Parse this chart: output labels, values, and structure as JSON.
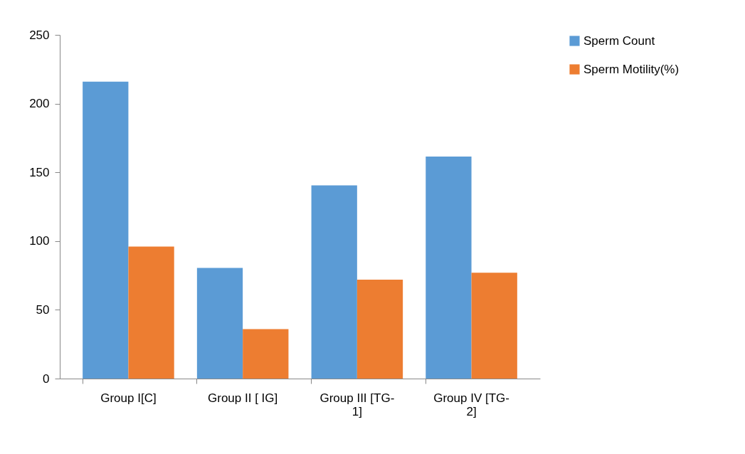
{
  "chart_data": {
    "type": "bar",
    "categories": [
      "Group I[C]",
      "Group II [ IG]",
      "Group III [TG-1]",
      "Group IV [TG-2]"
    ],
    "series": [
      {
        "name": "Sperm Count",
        "color": "#5b9bd5",
        "values": [
          216,
          80.5,
          140.5,
          161.5
        ]
      },
      {
        "name": "Sperm Motility(%)",
        "color": "#ed7d31",
        "values": [
          96,
          36,
          72,
          77
        ]
      }
    ],
    "ylim": [
      0,
      250
    ],
    "yticks": [
      0,
      50,
      100,
      150,
      200,
      250
    ],
    "grid": false,
    "legend": "right"
  }
}
